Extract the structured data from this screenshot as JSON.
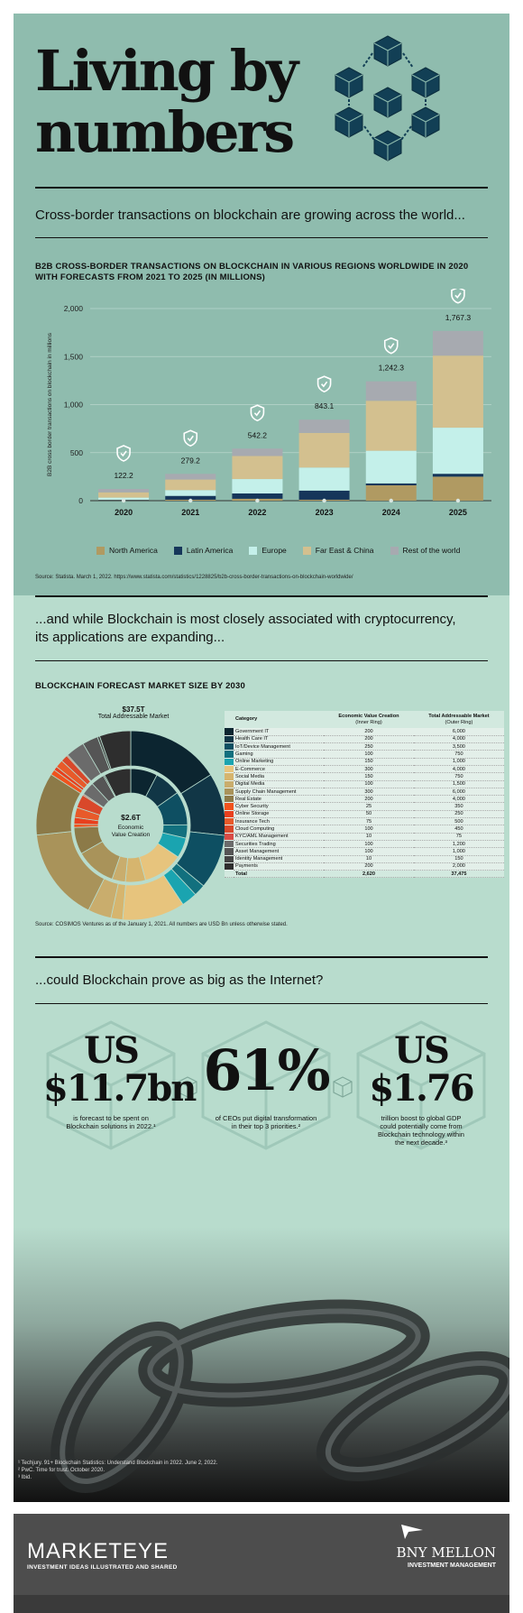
{
  "header": {
    "title_line1": "Living by",
    "title_line2": "numbers",
    "logo_icon": "blockchain-cubes-icon"
  },
  "section1": {
    "intro": "Cross-border transactions on blockchain are growing across the world...",
    "chart_title": "B2B CROSS-BORDER TRANSACTIONS ON BLOCKCHAIN IN VARIOUS REGIONS WORLDWIDE IN 2020 WITH FORECASTS FROM 2021 TO 2025 (IN MILLIONS)",
    "source": "Source: Statista. March 1, 2022. https://www.statista.com/statistics/1228825/b2b-cross-border-transactions-on-blockchain-worldwide/"
  },
  "chart_data": [
    {
      "type": "bar",
      "stacked": true,
      "title": "B2B CROSS-BORDER TRANSACTIONS ON BLOCKCHAIN IN VARIOUS REGIONS WORLDWIDE IN 2020 WITH FORECASTS FROM 2021 TO 2025 (IN MILLIONS)",
      "ylabel": "B2B cross border transactions on blockchain in millions",
      "xlabel": "",
      "categories": [
        "2020",
        "2021",
        "2022",
        "2023",
        "2024",
        "2025"
      ],
      "ylim": [
        0,
        2000
      ],
      "yticks": [
        "0",
        "500",
        "1,000",
        "1,500",
        "2,000"
      ],
      "grid": true,
      "legend_position": "bottom",
      "totals": [
        122.2,
        279.2,
        542.2,
        843.1,
        1242.3,
        1767.3
      ],
      "total_labels": [
        "122.2",
        "279.2",
        "542.2",
        "843.1",
        "1,242.3",
        "1,767.3"
      ],
      "series": [
        {
          "name": "North America",
          "color": "#b09a62",
          "values": [
            4,
            10,
            20,
            10,
            160,
            250
          ]
        },
        {
          "name": "Latin America",
          "color": "#16365a",
          "values": [
            6,
            40,
            55,
            95,
            20,
            30
          ]
        },
        {
          "name": "Europe",
          "color": "#c4f0ea",
          "values": [
            22,
            60,
            150,
            240,
            340,
            480
          ]
        },
        {
          "name": "Far East  & China",
          "color": "#d3c08f",
          "values": [
            55,
            110,
            240,
            360,
            520,
            750
          ]
        },
        {
          "name": "Rest of the world",
          "color": "#a7aab0",
          "values": [
            35,
            59,
            77,
            138,
            202,
            257
          ]
        }
      ]
    },
    {
      "type": "pie",
      "title": "BLOCKCHAIN FORECAST MARKET SIZE BY 2030",
      "outer_label": "$37.5T",
      "outer_caption": "Total Addressable Market",
      "inner_label": "$2.6T",
      "inner_caption_1": "Economic",
      "inner_caption_2": "Value Creation",
      "columns": [
        "Category",
        "Economic Value Creation",
        "Total Addressable Market"
      ],
      "column_sub": [
        "",
        "(Inner Ring)",
        "(Outer Ring)"
      ],
      "rows": [
        {
          "category": "Government IT",
          "color": "#0c2530",
          "inner": "200",
          "outer": "6,000",
          "inner_v": 200,
          "outer_v": 6000
        },
        {
          "category": "Health Care IT",
          "color": "#113646",
          "inner": "200",
          "outer": "4,000",
          "inner_v": 200,
          "outer_v": 4000
        },
        {
          "category": "IoT/Device Management",
          "color": "#0e4f62",
          "inner": "250",
          "outer": "3,500",
          "inner_v": 250,
          "outer_v": 3500
        },
        {
          "category": "Gaming",
          "color": "#12707e",
          "inner": "100",
          "outer": "750",
          "inner_v": 100,
          "outer_v": 750
        },
        {
          "category": "Online Marketing",
          "color": "#1aa4b0",
          "inner": "150",
          "outer": "1,000",
          "inner_v": 150,
          "outer_v": 1000
        },
        {
          "category": "E-Commerce",
          "color": "#e7c47d",
          "inner": "300",
          "outer": "4,000",
          "inner_v": 300,
          "outer_v": 4000
        },
        {
          "category": "Social Media",
          "color": "#d6b56e",
          "inner": "150",
          "outer": "750",
          "inner_v": 150,
          "outer_v": 750
        },
        {
          "category": "Digital Media",
          "color": "#c9ad6d",
          "inner": "100",
          "outer": "1,500",
          "inner_v": 100,
          "outer_v": 1500
        },
        {
          "category": "Supply Chain Management",
          "color": "#a9935a",
          "inner": "300",
          "outer": "6,000",
          "inner_v": 300,
          "outer_v": 6000
        },
        {
          "category": "Real Estate",
          "color": "#8c7a48",
          "inner": "200",
          "outer": "4,000",
          "inner_v": 200,
          "outer_v": 4000
        },
        {
          "category": "Cyber Security",
          "color": "#f0531d",
          "inner": "25",
          "outer": "350",
          "inner_v": 25,
          "outer_v": 350
        },
        {
          "category": "Online Storage",
          "color": "#e8401e",
          "inner": "50",
          "outer": "250",
          "inner_v": 50,
          "outer_v": 250
        },
        {
          "category": "Insurance Tech",
          "color": "#e85a2a",
          "inner": "75",
          "outer": "500",
          "inner_v": 75,
          "outer_v": 500
        },
        {
          "category": "Cloud Computing",
          "color": "#d9482a",
          "inner": "100",
          "outer": "450",
          "inner_v": 100,
          "outer_v": 450
        },
        {
          "category": "KYC/AML Management",
          "color": "#d84c46",
          "inner": "10",
          "outer": "75",
          "inner_v": 10,
          "outer_v": 75
        },
        {
          "category": "Securities Trading",
          "color": "#6b6b6b",
          "inner": "100",
          "outer": "1,200",
          "inner_v": 100,
          "outer_v": 1200
        },
        {
          "category": "Asset Management",
          "color": "#555555",
          "inner": "100",
          "outer": "1,000",
          "inner_v": 100,
          "outer_v": 1000
        },
        {
          "category": "Identity Management",
          "color": "#444444",
          "inner": "10",
          "outer": "150",
          "inner_v": 10,
          "outer_v": 150
        },
        {
          "category": "Payments",
          "color": "#2e2e2e",
          "inner": "200",
          "outer": "2,000",
          "inner_v": 200,
          "outer_v": 2000
        }
      ],
      "total_row": {
        "category": "Total",
        "inner": "2,620",
        "outer": "37,475"
      }
    }
  ],
  "section2": {
    "intro_line1": "...and while Blockchain is most closely associated with cryptocurrency,",
    "intro_line2": "its applications are expanding...",
    "chart_title": "BLOCKCHAIN FORECAST MARKET SIZE BY 2030",
    "source": "Source: COSIMOS Ventures as of the January 1, 2021. All numbers are USD Bn unless otherwise stated."
  },
  "section3": {
    "intro": "...could Blockchain prove as big as the Internet?",
    "stats": [
      {
        "line1": "US",
        "line2": "$11.7bn",
        "desc1": "is forecast to be spent on",
        "desc2": "Blockchain solutions in 2022.¹"
      },
      {
        "line1": "",
        "line2": "61%",
        "desc1": "of CEOs put digital transformation",
        "desc2": "in their top 3 priorities.²"
      },
      {
        "line1": "US",
        "line2": "$1.76",
        "desc1": "trillion boost to global GDP",
        "desc2": "could potentially come from",
        "desc3": "Blockchain technology within",
        "desc4": "the next decade.³"
      }
    ],
    "notes": [
      "¹ Techjury. 91+ Blockchain Statistics: Understand Blockchain in 2022. June 2, 2022.",
      "² PwC. Time for trust. October 2020.",
      "³ Ibid."
    ]
  },
  "footer": {
    "brand": "MARKETEYE",
    "tagline": "INVESTMENT IDEAS ILLUSTRATED AND SHARED",
    "company": "BNY MELLON",
    "division": "INVESTMENT MANAGEMENT"
  },
  "colors": {
    "section1_bg": "#8fbcae",
    "section2_bg": "#b8dccd",
    "footer_bg": "#4d4d4d"
  }
}
